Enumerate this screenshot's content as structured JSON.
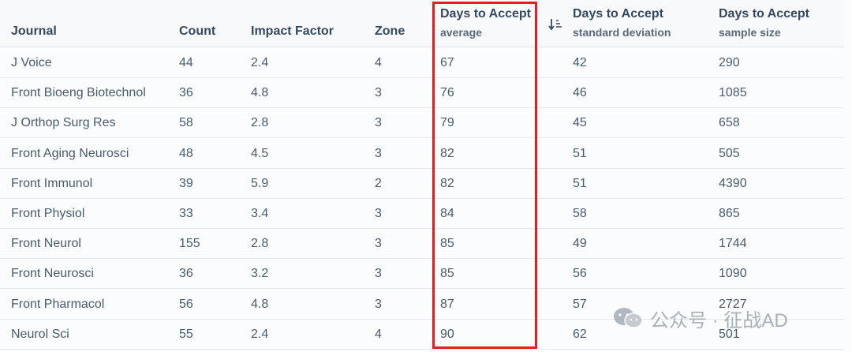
{
  "table": {
    "headers": {
      "journal": "Journal",
      "count": "Count",
      "impact_factor": "Impact Factor",
      "zone": "Zone",
      "avg_title": "Days to Accept",
      "avg_sub": "average",
      "sd_title": "Days to Accept",
      "sd_sub": "standard deviation",
      "ss_title": "Days to Accept",
      "ss_sub": "sample size"
    },
    "sort_icon": "sort-ascending-icon",
    "rows": [
      {
        "journal": "J Voice",
        "count": "44",
        "impact_factor": "2.4",
        "zone": "4",
        "avg": "67",
        "sd": "42",
        "ss": "290"
      },
      {
        "journal": "Front Bioeng Biotechnol",
        "count": "36",
        "impact_factor": "4.8",
        "zone": "3",
        "avg": "76",
        "sd": "46",
        "ss": "1085"
      },
      {
        "journal": "J Orthop Surg Res",
        "count": "58",
        "impact_factor": "2.8",
        "zone": "3",
        "avg": "79",
        "sd": "45",
        "ss": "658"
      },
      {
        "journal": "Front Aging Neurosci",
        "count": "48",
        "impact_factor": "4.5",
        "zone": "3",
        "avg": "82",
        "sd": "51",
        "ss": "505"
      },
      {
        "journal": "Front Immunol",
        "count": "39",
        "impact_factor": "5.9",
        "zone": "2",
        "avg": "82",
        "sd": "51",
        "ss": "4390"
      },
      {
        "journal": "Front Physiol",
        "count": "33",
        "impact_factor": "3.4",
        "zone": "3",
        "avg": "84",
        "sd": "58",
        "ss": "865"
      },
      {
        "journal": "Front Neurol",
        "count": "155",
        "impact_factor": "2.8",
        "zone": "3",
        "avg": "85",
        "sd": "49",
        "ss": "1744"
      },
      {
        "journal": "Front Neurosci",
        "count": "36",
        "impact_factor": "3.2",
        "zone": "3",
        "avg": "85",
        "sd": "56",
        "ss": "1090"
      },
      {
        "journal": "Front Pharmacol",
        "count": "56",
        "impact_factor": "4.8",
        "zone": "3",
        "avg": "87",
        "sd": "57",
        "ss": "2727"
      },
      {
        "journal": "Neurol Sci",
        "count": "55",
        "impact_factor": "2.4",
        "zone": "4",
        "avg": "90",
        "sd": "62",
        "ss": "501"
      }
    ]
  },
  "highlight_color": "#e02020",
  "watermark": {
    "icon": "wechat-icon",
    "text": "公众号 · 征战AD"
  }
}
